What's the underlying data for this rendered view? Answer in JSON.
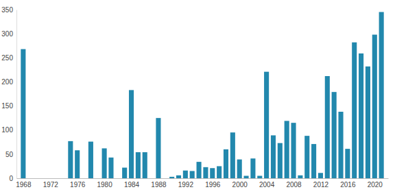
{
  "chart_data": {
    "type": "bar",
    "x": [
      1968,
      1975,
      1976,
      1978,
      1980,
      1981,
      1983,
      1984,
      1985,
      1986,
      1988,
      1990,
      1991,
      1992,
      1993,
      1994,
      1995,
      1996,
      1997,
      1998,
      1999,
      2000,
      2001,
      2002,
      2003,
      2004,
      2005,
      2006,
      2007,
      2008,
      2009,
      2010,
      2011,
      2012,
      2013,
      2014,
      2015,
      2016,
      2017,
      2018,
      2019,
      2020,
      2021
    ],
    "values": [
      268,
      77,
      58,
      76,
      62,
      43,
      22,
      183,
      54,
      54,
      125,
      3,
      6,
      16,
      15,
      34,
      23,
      21,
      25,
      60,
      95,
      39,
      5,
      41,
      5,
      221,
      89,
      73,
      119,
      115,
      6,
      88,
      71,
      11,
      212,
      179,
      138,
      61,
      282,
      259,
      232,
      298,
      345
    ],
    "color": "#2288ad",
    "xlim": [
      1967,
      2022
    ],
    "xticks": [
      1968,
      1972,
      1976,
      1980,
      1984,
      1988,
      1992,
      1996,
      2000,
      2004,
      2008,
      2012,
      2016,
      2020
    ],
    "ylim": [
      0,
      350
    ],
    "yticks": [
      0,
      50,
      100,
      150,
      200,
      250,
      300,
      350
    ],
    "grid": false
  }
}
